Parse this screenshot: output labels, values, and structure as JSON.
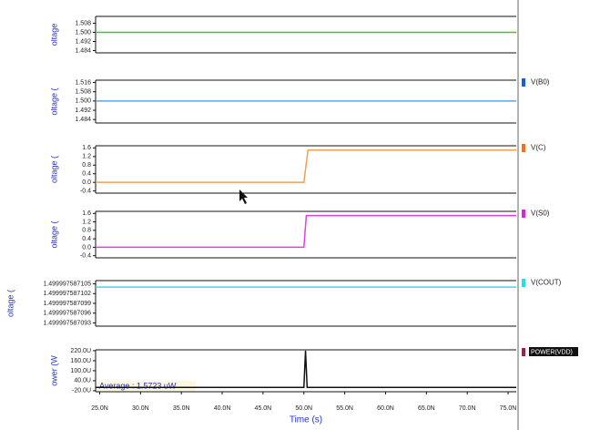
{
  "chart_data": [
    {
      "type": "line",
      "y_label": "oltage",
      "x": [
        2.45e-08,
        7.6e-08
      ],
      "xlim": [
        2.45e-08,
        7.6e-08
      ],
      "ylim": [
        1.482,
        1.514
      ],
      "yticks": [
        {
          "value": 1.508,
          "label": "1.508"
        },
        {
          "value": 1.5,
          "label": "1.500"
        },
        {
          "value": 1.492,
          "label": "1.492"
        },
        {
          "value": 1.484,
          "label": "1.484"
        }
      ],
      "series": [
        {
          "color": "#3ec43e",
          "values": [
            1.5,
            1.5
          ]
        }
      ]
    },
    {
      "type": "line",
      "y_label": "oltage (",
      "x": [
        2.45e-08,
        7.6e-08
      ],
      "xlim": [
        2.45e-08,
        7.6e-08
      ],
      "ylim": [
        1.481,
        1.518
      ],
      "yticks": [
        {
          "value": 1.516,
          "label": "1.516"
        },
        {
          "value": 1.508,
          "label": "1.508"
        },
        {
          "value": 1.5,
          "label": "1.500"
        },
        {
          "value": 1.492,
          "label": "1.492"
        },
        {
          "value": 1.484,
          "label": "1.484"
        }
      ],
      "series": [
        {
          "name": "V(B0)",
          "color": "#5aa9e6",
          "legend_color": "#1060e0",
          "values": [
            1.5,
            1.5
          ]
        }
      ]
    },
    {
      "type": "line",
      "y_label": "oltage (",
      "x": [
        2.45e-08,
        5e-08,
        5.05e-08,
        7.6e-08
      ],
      "xlim": [
        2.45e-08,
        7.6e-08
      ],
      "ylim": [
        -0.5,
        1.7
      ],
      "yticks": [
        1.6,
        1.2,
        0.8,
        0.4,
        {
          "value": 0,
          "label": "0.0"
        },
        -0.4
      ],
      "series": [
        {
          "name": "V(C)",
          "color": "#f0a050",
          "legend_color": "#f07020",
          "values": [
            0,
            0,
            1.5,
            1.5
          ]
        }
      ]
    },
    {
      "type": "line",
      "y_label": "oltage (",
      "x": [
        2.45e-08,
        5e-08,
        5.03e-08,
        7.6e-08
      ],
      "xlim": [
        2.45e-08,
        7.6e-08
      ],
      "ylim": [
        -0.5,
        1.7
      ],
      "yticks": [
        1.6,
        1.2,
        0.8,
        0.4,
        {
          "value": 0,
          "label": "0.0"
        },
        -0.4
      ],
      "series": [
        {
          "name": "V(S0)",
          "color": "#e040e0",
          "legend_color": "#e020e0",
          "values": [
            0,
            0,
            1.5,
            1.5
          ]
        }
      ]
    },
    {
      "type": "line",
      "y_label": "oltage (",
      "x": [
        2.45e-08,
        7.6e-08
      ],
      "xlim": [
        2.45e-08,
        7.6e-08
      ],
      "ylim": [
        1.499997587092,
        1.499997587106
      ],
      "yticks": [
        1.499997587105,
        1.499997587102,
        1.499997587099,
        1.499997587096,
        1.499997587093
      ],
      "series": [
        {
          "name": "V(COUT)",
          "color": "#40d8e8",
          "legend_color": "#20e0f0",
          "values": [
            1.499997587104,
            1.499997587104
          ]
        }
      ]
    },
    {
      "type": "line",
      "y_label": "ower (W",
      "x_label": "Time (s)",
      "annotation": "Average : 1.5723 uW",
      "x": [
        2.45e-08,
        5e-08,
        5.02e-08,
        5.04e-08,
        7.6e-08
      ],
      "xlim": [
        2.45e-08,
        7.6e-08
      ],
      "xticks": [
        {
          "value": 2.5e-08,
          "label": "25.0N"
        },
        {
          "value": 3e-08,
          "label": "30.0N"
        },
        {
          "value": 3.5e-08,
          "label": "35.0N"
        },
        {
          "value": 4e-08,
          "label": "40.0N"
        },
        {
          "value": 4.5e-08,
          "label": "45.0N"
        },
        {
          "value": 5e-08,
          "label": "50.0N"
        },
        {
          "value": 5.5e-08,
          "label": "55.0N"
        },
        {
          "value": 6e-08,
          "label": "60.0N"
        },
        {
          "value": 6.5e-08,
          "label": "65.0N"
        },
        {
          "value": 7e-08,
          "label": "70.0N"
        },
        {
          "value": 7.5e-08,
          "label": "75.0N"
        }
      ],
      "ylim": [
        -2.6e-05,
        0.000225
      ],
      "yticks": [
        {
          "value": 0.00022,
          "label": "220.0U"
        },
        {
          "value": 0.00016,
          "label": "160.0U"
        },
        {
          "value": 0.0001,
          "label": "100.0U"
        },
        {
          "value": 4e-05,
          "label": "40.0U"
        },
        {
          "value": -2e-05,
          "label": "-20.0U"
        }
      ],
      "series": [
        {
          "name": "POWER(VDD)",
          "color": "#111111",
          "legend_color": "#a02040",
          "values": [
            0,
            0,
            0.00022,
            0,
            0
          ]
        }
      ]
    }
  ]
}
